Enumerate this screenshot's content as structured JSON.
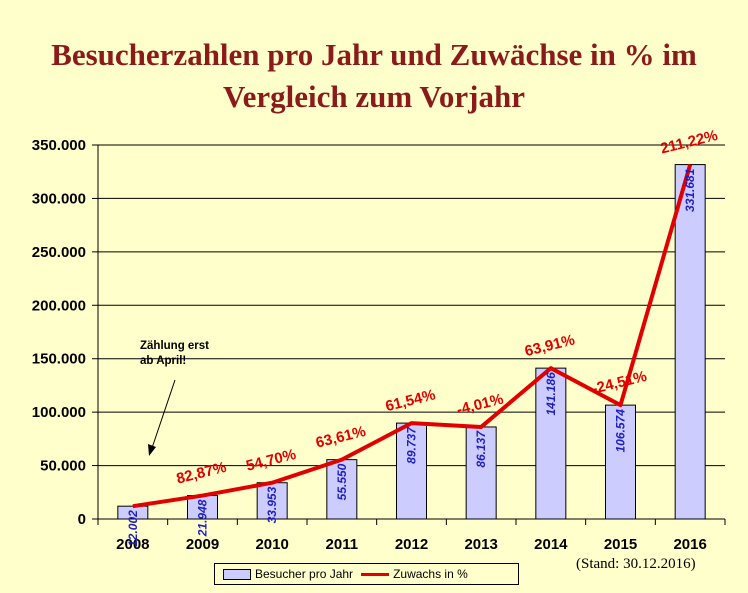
{
  "chart_data": {
    "type": "bar",
    "title_lines": [
      "Besucherzahlen pro Jahr und Zuwächse in % im",
      "Vergleich zum Vorjahr"
    ],
    "categories": [
      "2008",
      "2009",
      "2010",
      "2011",
      "2012",
      "2013",
      "2014",
      "2015",
      "2016"
    ],
    "series": [
      {
        "name": "Besucher pro Jahr",
        "type": "bar",
        "values": [
          12002,
          21948,
          33953,
          55550,
          89737,
          86137,
          141186,
          106574,
          331681
        ],
        "labels": [
          "12.002",
          "21.948",
          "33.953",
          "55.550",
          "89.737",
          "86.137",
          "141.186",
          "106.574",
          "331.681"
        ]
      },
      {
        "name": "Zuwachs in %",
        "type": "line",
        "values": [
          12002,
          21948,
          33953,
          55550,
          89737,
          86137,
          141186,
          106574,
          331681
        ],
        "labels": [
          "",
          "82,87%",
          "54,70%",
          "63,61%",
          "61,54%",
          "-4,01%",
          "63,91%",
          "-24,51%",
          "211,22%"
        ]
      }
    ],
    "ylim": [
      0,
      350000
    ],
    "yticks": [
      0,
      50000,
      100000,
      150000,
      200000,
      250000,
      300000,
      350000
    ],
    "ytick_labels": [
      "0",
      "50.000",
      "100.000",
      "150.000",
      "200.000",
      "250.000",
      "300.000",
      "350.000"
    ],
    "grid": true,
    "legend": "bottom",
    "annotation": [
      "Zählung erst",
      "ab April!"
    ],
    "colors": {
      "bar": "#ccccff",
      "line": "#e00000",
      "bar_label": "#1f1fbf",
      "title": "#8b1a1a",
      "background": "#ffffcc"
    }
  },
  "footer": {
    "stand": "(Stand: 30.12.2016)"
  }
}
